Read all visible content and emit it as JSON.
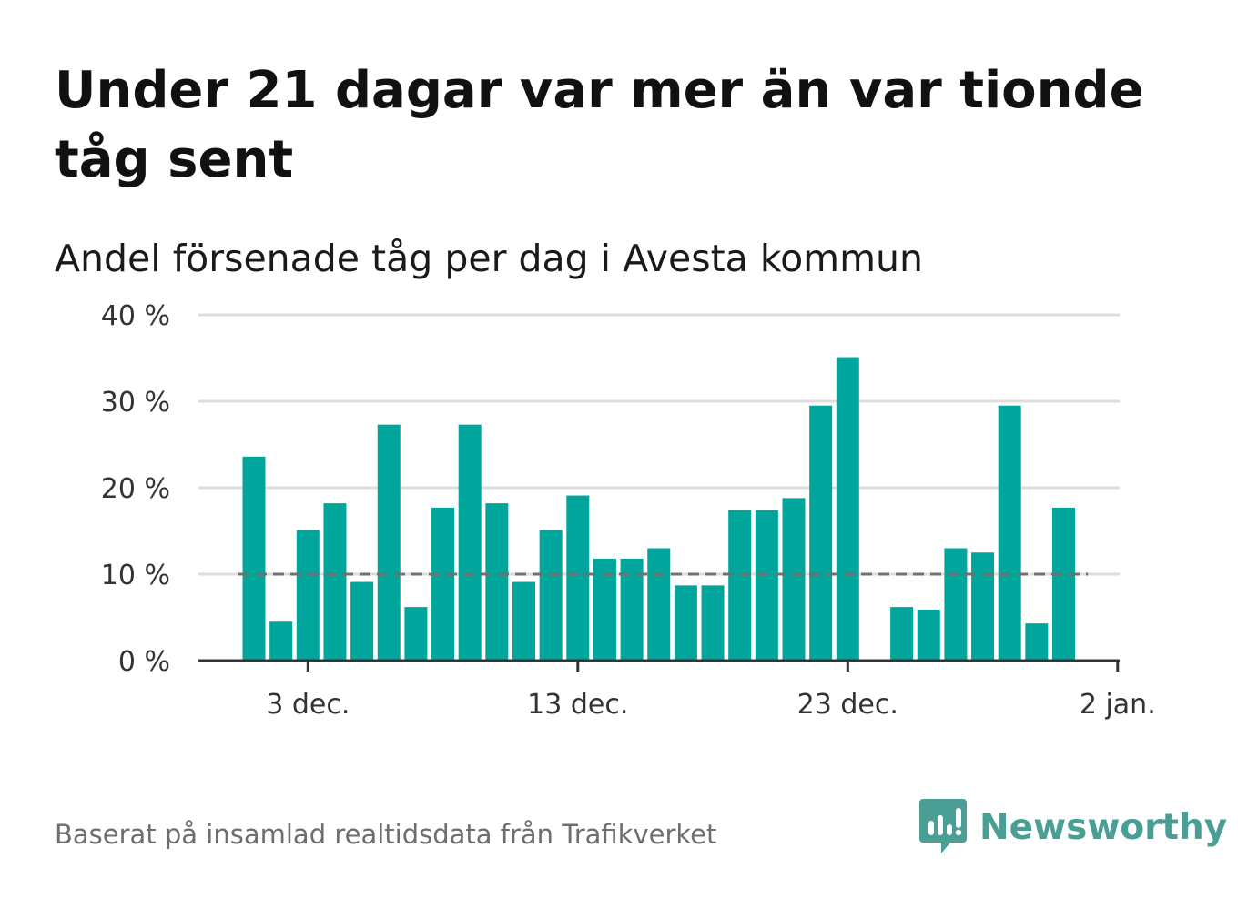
{
  "header": {
    "title": "Under 21 dagar var mer än var tionde tåg sent",
    "subtitle": "Andel försenade tåg per dag i Avesta kommun"
  },
  "footer": {
    "source": "Baserat på insamlad realtidsdata från Trafikverket"
  },
  "brand": {
    "name": "Newsworthy",
    "color": "#4a9e94",
    "icon": "newsworthy-logo-icon"
  },
  "colors": {
    "bar": "#00a59c",
    "reference_line": "#707070",
    "grid": "#dddddd",
    "axis": "#333333"
  },
  "chart_data": {
    "type": "bar",
    "title": "Andel försenade tåg per dag i Avesta kommun",
    "xlabel": "",
    "ylabel": "",
    "x_type": "date",
    "categories": [
      "2023-12-01",
      "2023-12-02",
      "2023-12-03",
      "2023-12-04",
      "2023-12-05",
      "2023-12-06",
      "2023-12-07",
      "2023-12-08",
      "2023-12-09",
      "2023-12-10",
      "2023-12-11",
      "2023-12-12",
      "2023-12-13",
      "2023-12-14",
      "2023-12-15",
      "2023-12-16",
      "2023-12-17",
      "2023-12-18",
      "2023-12-19",
      "2023-12-20",
      "2023-12-21",
      "2023-12-22",
      "2023-12-23",
      "2023-12-24",
      "2023-12-25",
      "2023-12-26",
      "2023-12-27",
      "2023-12-28",
      "2023-12-29",
      "2023-12-30",
      "2023-12-31",
      "2024-01-01"
    ],
    "values": [
      23.6,
      4.5,
      15.1,
      18.2,
      9.1,
      27.3,
      6.2,
      17.7,
      27.3,
      18.2,
      9.1,
      15.1,
      19.1,
      11.8,
      11.8,
      13.0,
      8.7,
      8.7,
      17.4,
      17.4,
      18.8,
      29.5,
      35.1,
      null,
      6.2,
      5.9,
      13.0,
      12.5,
      29.5,
      4.3,
      17.7,
      null
    ],
    "ylim": [
      0,
      40
    ],
    "y_ticks": [
      0,
      10,
      20,
      30,
      40
    ],
    "y_tick_labels": [
      "0 %",
      "10 %",
      "20 %",
      "30 %",
      "40 %"
    ],
    "x_ticks": [
      "2023-12-03",
      "2023-12-13",
      "2023-12-23",
      "2024-01-02"
    ],
    "x_tick_labels": [
      "3 dec.",
      "13 dec.",
      "23 dec.",
      "2 jan."
    ],
    "reference_line": {
      "value": 10,
      "style": "dashed"
    },
    "grid": true,
    "legend": "none"
  }
}
